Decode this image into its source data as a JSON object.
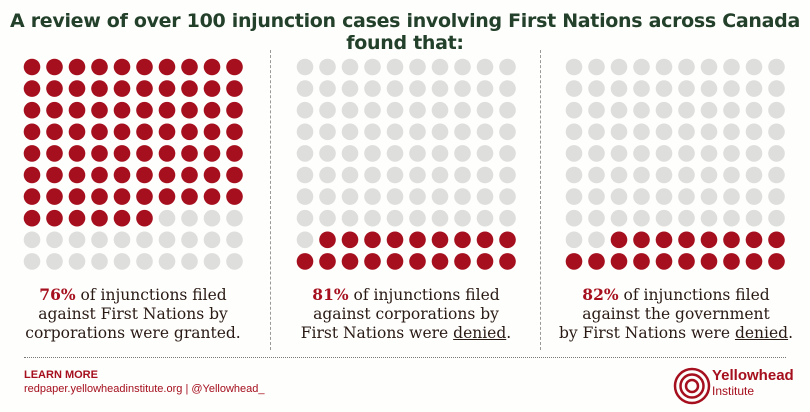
{
  "title": "A review of over 100 injunction cases involving First Nations across Canada found that:",
  "colors": {
    "filled": "#a50f1e",
    "empty": "#dedfdc",
    "title": "#23402a"
  },
  "chart_data": [
    {
      "type": "waffle",
      "total": 100,
      "filled": 76,
      "fill_from": "top-left",
      "caption": {
        "pct": "76%",
        "l1": " of injunctions filed",
        "l2": "against First Nations by",
        "l3": "corporations were granted."
      }
    },
    {
      "type": "waffle",
      "total": 100,
      "filled": 19,
      "fill_from": "bottom-left",
      "caption": {
        "pct": "81%",
        "l1": " of injunctions filed",
        "l2": "against corporations by",
        "l3a": "First Nations were ",
        "l3u": "denied",
        "l3b": "."
      }
    },
    {
      "type": "waffle",
      "total": 100,
      "filled": 18,
      "fill_from": "bottom-left",
      "caption": {
        "pct": "82%",
        "l1": " of injunctions filed",
        "l2": "against the government",
        "l3a": "by First Nations were ",
        "l3u": "denied",
        "l3b": "."
      }
    }
  ],
  "footer": {
    "learn_more": "LEARN MORE",
    "links": "redpaper.yellowheadinstitute.org | @Yellowhead_",
    "brand_name": "Yellowhead",
    "brand_sub": "Institute"
  }
}
